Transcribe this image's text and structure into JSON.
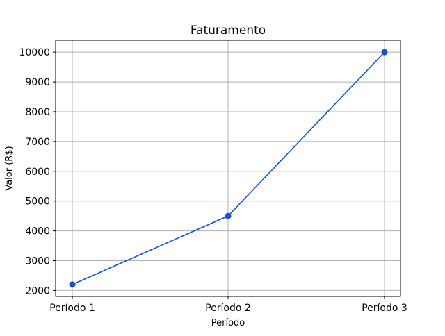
{
  "chart_data": {
    "type": "line",
    "title": "Faturamento",
    "xlabel": "Período",
    "ylabel": "Valor (R$)",
    "categories": [
      "Período 1",
      "Período 2",
      "Período 3"
    ],
    "series": [
      {
        "values": [
          2200,
          4500,
          10000
        ],
        "color": "#1155cc",
        "marker": "circle"
      }
    ],
    "ylim": [
      1800,
      10400
    ],
    "yticks": [
      2000,
      3000,
      4000,
      5000,
      6000,
      7000,
      8000,
      9000,
      10000
    ],
    "grid": true,
    "legend": "none"
  }
}
